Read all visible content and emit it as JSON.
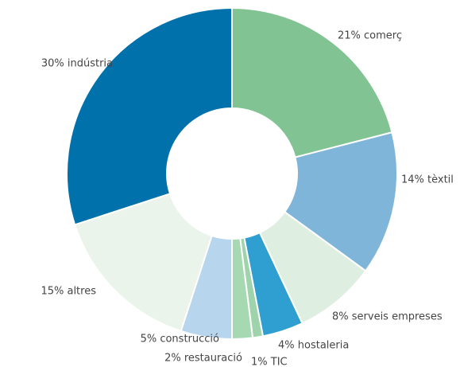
{
  "chart_data": {
    "type": "donut",
    "values": [
      21,
      14,
      8,
      4,
      1,
      2,
      5,
      15,
      30
    ],
    "value_labels": [
      "21% comerç",
      "14% tèxtil",
      "8% serveis empreses",
      "4% hostaleria",
      "1% TIC",
      "2% restauració",
      "5% construcció",
      "15% altres",
      "30% indústria"
    ],
    "colors": [
      "#82c393",
      "#7fb5d8",
      "#deeee0",
      "#2e9fd0",
      "#9fd3ab",
      "#a6d8b2",
      "#b7d5ec",
      "#eaf4ea",
      "#0071ab"
    ]
  }
}
